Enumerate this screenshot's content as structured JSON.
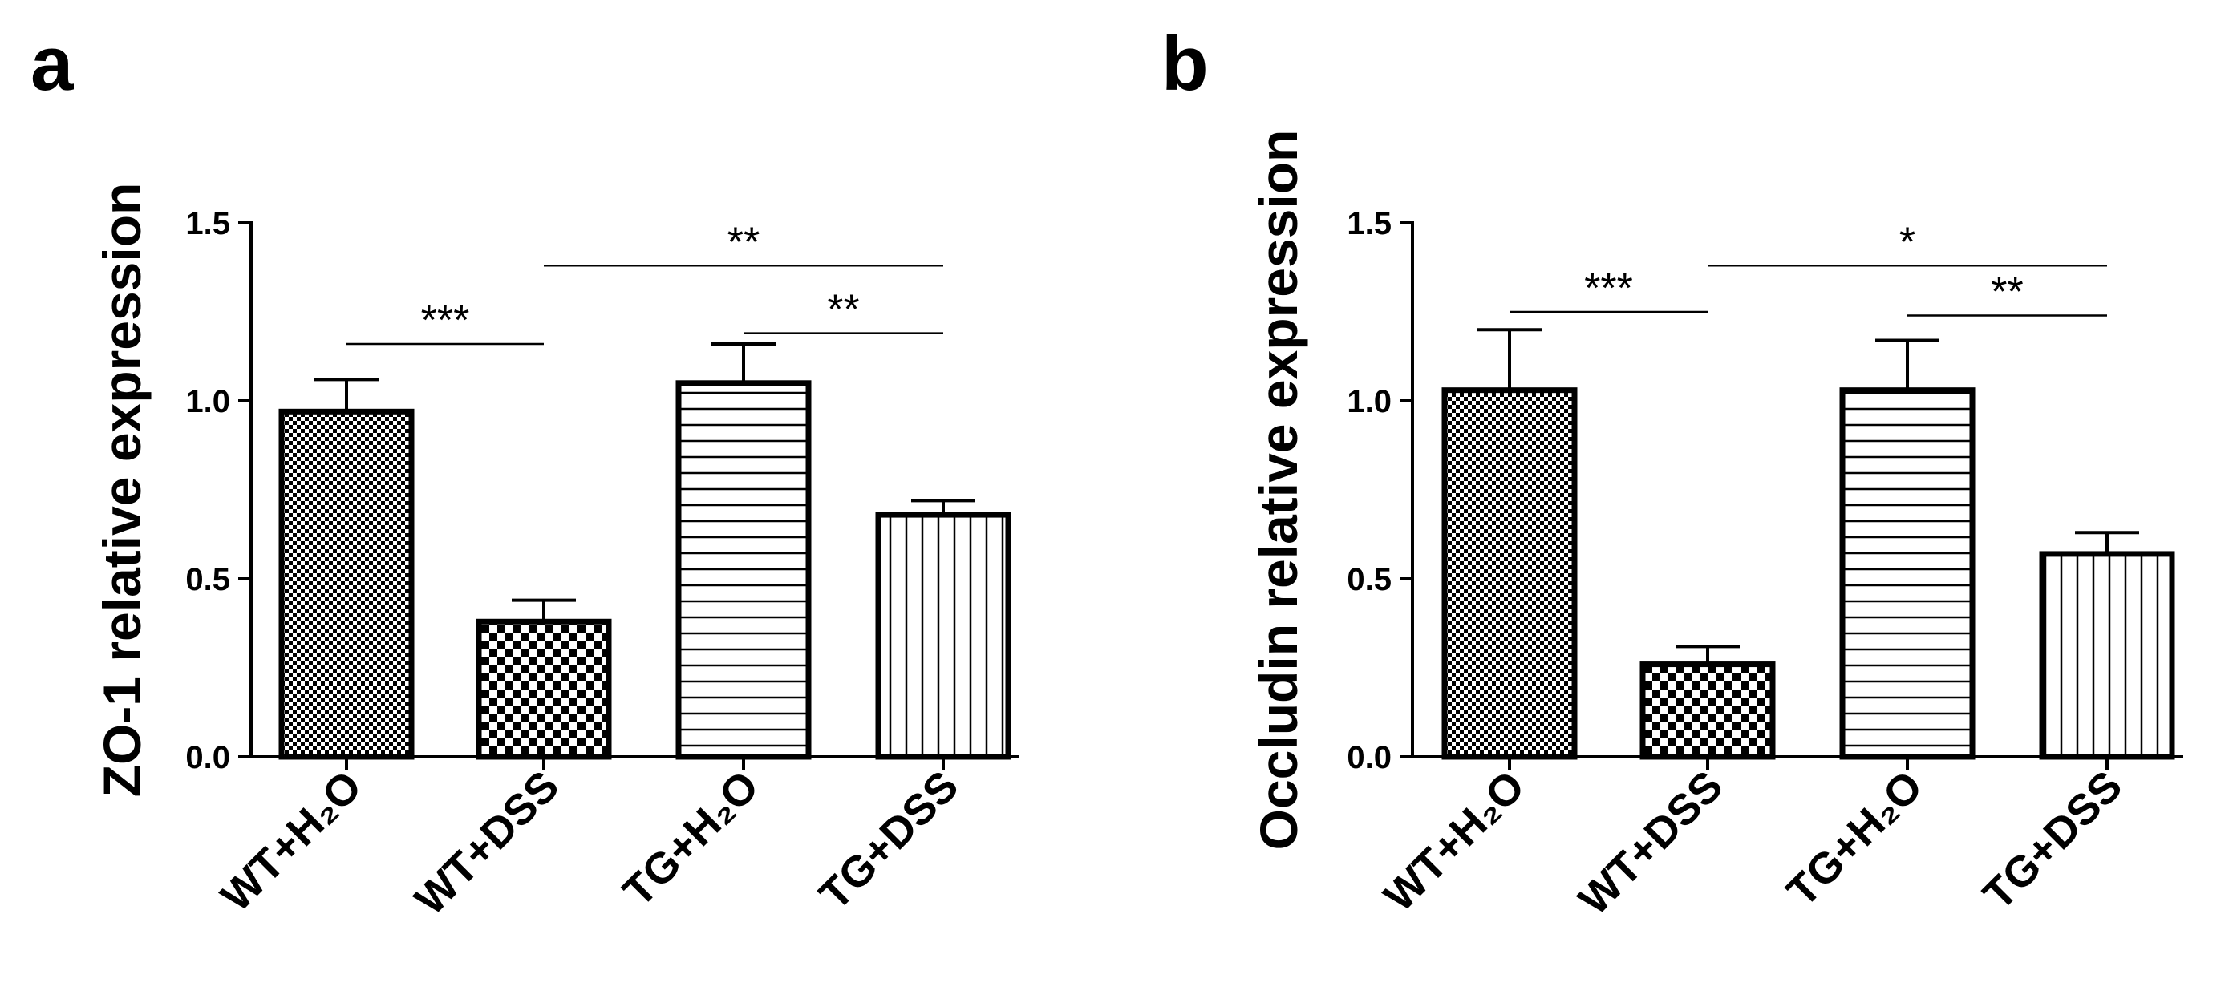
{
  "chart_data": [
    {
      "type": "bar",
      "panel": "a",
      "ylabel": "ZO-1 relative expression",
      "xlabel": "",
      "ylim": [
        0,
        1.5
      ],
      "yticks": [
        "0.0",
        "0.5",
        "1.0",
        "1.5"
      ],
      "categories": [
        "WT+H₂O",
        "WT+DSS",
        "TG+H₂O",
        "TG+DSS"
      ],
      "values": [
        0.97,
        0.38,
        1.05,
        0.68
      ],
      "errors": [
        0.09,
        0.06,
        0.11,
        0.04
      ],
      "patterns": [
        "fine-check",
        "coarse-check",
        "horizontal",
        "vertical"
      ],
      "significance": [
        {
          "from": 0,
          "to": 1,
          "level": 1.16,
          "label": "***"
        },
        {
          "from": 2,
          "to": 3,
          "level": 1.19,
          "label": "**"
        },
        {
          "from": 1,
          "to": 3,
          "level": 1.38,
          "label": "**"
        }
      ]
    },
    {
      "type": "bar",
      "panel": "b",
      "ylabel": "Occludin relative expression",
      "xlabel": "",
      "ylim": [
        0,
        1.5
      ],
      "yticks": [
        "0.0",
        "0.5",
        "1.0",
        "1.5"
      ],
      "categories": [
        "WT+H₂O",
        "WT+DSS",
        "TG+H₂O",
        "TG+DSS"
      ],
      "values": [
        1.03,
        0.26,
        1.03,
        0.57
      ],
      "errors": [
        0.17,
        0.05,
        0.14,
        0.06
      ],
      "patterns": [
        "fine-check",
        "coarse-check",
        "horizontal",
        "vertical"
      ],
      "significance": [
        {
          "from": 0,
          "to": 1,
          "level": 1.25,
          "label": "***"
        },
        {
          "from": 2,
          "to": 3,
          "level": 1.24,
          "label": "**"
        },
        {
          "from": 1,
          "to": 3,
          "level": 1.38,
          "label": "*"
        }
      ]
    }
  ]
}
